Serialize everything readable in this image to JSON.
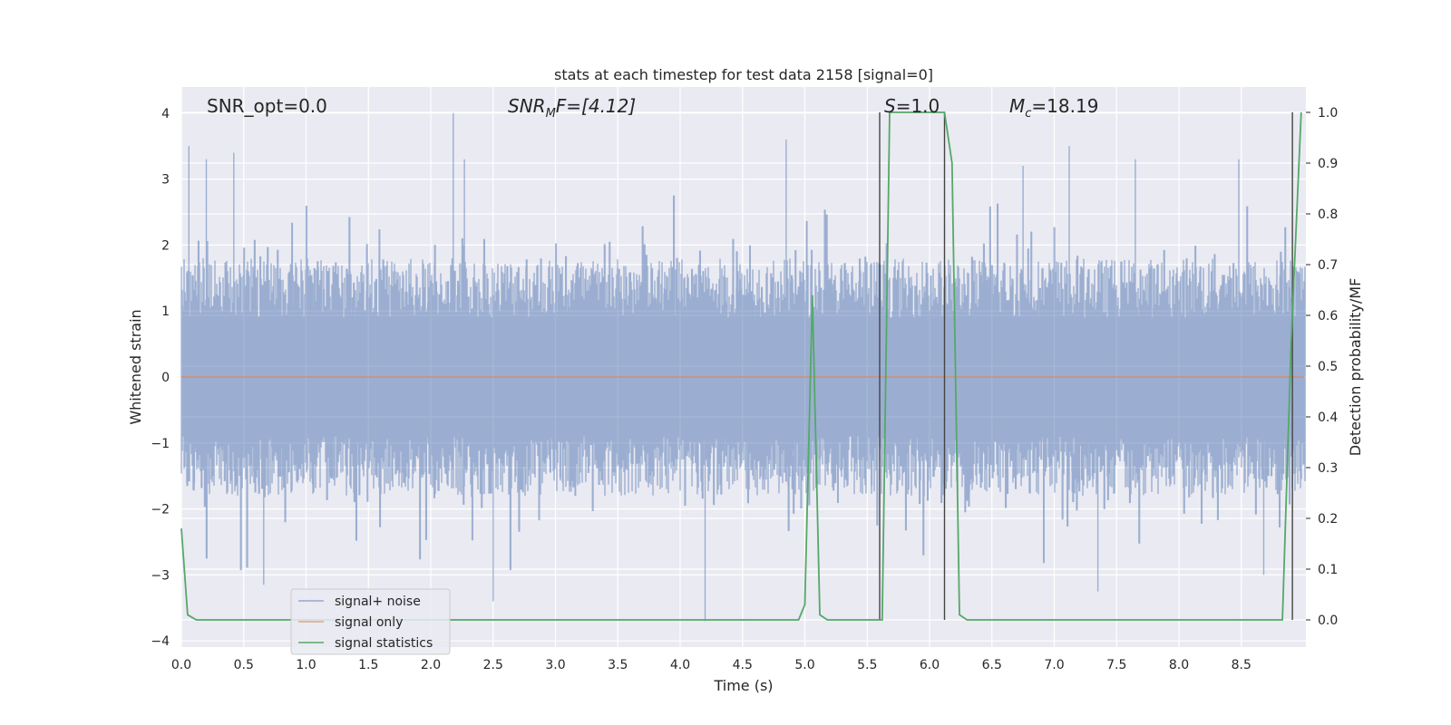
{
  "chart_data": {
    "type": "line",
    "title": "stats at each timestep for test data 2158 [signal=0]",
    "xlabel": "Time (s)",
    "ylabel": "Whitened strain",
    "y2label": "Detection probability/MF",
    "xlim": [
      0.0,
      9.0
    ],
    "ylim": [
      -4.2,
      4.4
    ],
    "y2lim": [
      -0.05,
      1.05
    ],
    "x_ticks": [
      "0.0",
      "0.5",
      "1.0",
      "1.5",
      "2.0",
      "2.5",
      "3.0",
      "3.5",
      "4.0",
      "4.5",
      "5.0",
      "5.5",
      "6.0",
      "6.5",
      "7.0",
      "7.5",
      "8.0",
      "8.5"
    ],
    "y_ticks": [
      "4",
      "3",
      "2",
      "1",
      "0",
      "−1",
      "−2",
      "−3",
      "−4"
    ],
    "y2_ticks": [
      "1.0",
      "0.9",
      "0.8",
      "0.7",
      "0.6",
      "0.5",
      "0.4",
      "0.3",
      "0.2",
      "0.1",
      "0.0"
    ],
    "grid": true,
    "legend_position": "lower-left",
    "annotations": {
      "snr_opt": "SNR_opt=0.0",
      "snr_mf_italic": "SNR",
      "snr_mf_sub": "M",
      "snr_mf_rest": "F=[4.12]",
      "s_italic": "S",
      "s_rest": "=1.0",
      "mc_italic": "M",
      "mc_sub": "c",
      "mc_rest": "=18.19"
    },
    "series": [
      {
        "name": "signal+ noise",
        "color": "#4c72b0",
        "description": "dense whitened noise, roughly within [-3.7, 4.0]",
        "peaks": [
          {
            "x": 0.06,
            "y": 3.5
          },
          {
            "x": 0.2,
            "y": 3.3
          },
          {
            "x": 0.42,
            "y": 3.4
          },
          {
            "x": 2.18,
            "y": 4.0
          },
          {
            "x": 2.27,
            "y": 3.3
          },
          {
            "x": 4.85,
            "y": 3.6
          },
          {
            "x": 6.75,
            "y": 3.2
          },
          {
            "x": 7.12,
            "y": 3.5
          },
          {
            "x": 7.65,
            "y": 3.3
          },
          {
            "x": 8.48,
            "y": 3.3
          },
          {
            "x": 0.66,
            "y": -3.15
          },
          {
            "x": 2.5,
            "y": -3.4
          },
          {
            "x": 4.2,
            "y": -3.7
          },
          {
            "x": 7.35,
            "y": -3.25
          },
          {
            "x": 8.68,
            "y": -3.0
          }
        ]
      },
      {
        "name": "signal only",
        "color": "#dd8452",
        "x": [
          0.0,
          9.0
        ],
        "y": [
          0.0,
          0.0
        ]
      },
      {
        "name": "signal statistics",
        "color": "#55a868",
        "axis": "right",
        "x": [
          0.0,
          0.05,
          0.12,
          4.95,
          5.0,
          5.06,
          5.12,
          5.18,
          5.62,
          5.68,
          5.76,
          6.12,
          6.18,
          6.24,
          6.3,
          8.83,
          8.9,
          8.98
        ],
        "y": [
          0.18,
          0.01,
          0.0,
          0.0,
          0.03,
          0.64,
          0.01,
          0.0,
          0.0,
          1.0,
          1.0,
          1.0,
          0.9,
          0.01,
          0.0,
          0.0,
          0.55,
          1.0
        ]
      }
    ],
    "vertical_markers": [
      {
        "x": 5.6,
        "y_top": 1.0,
        "color": "#444444"
      },
      {
        "x": 6.12,
        "y_top": 1.0,
        "color": "#444444"
      },
      {
        "x": 8.91,
        "y_top": 1.0,
        "color": "#444444"
      }
    ]
  }
}
